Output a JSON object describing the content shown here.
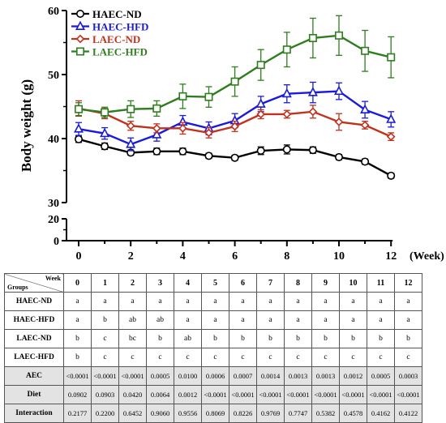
{
  "chart_data": {
    "type": "line",
    "title": "",
    "ylabel": "Body weight (g)",
    "xlabel": "(Week)",
    "x": [
      0,
      1,
      2,
      3,
      4,
      5,
      6,
      7,
      8,
      9,
      10,
      11,
      12
    ],
    "xticks": [
      "0",
      "2",
      "4",
      "6",
      "8",
      "10",
      "12"
    ],
    "ylim_upper": [
      30,
      60
    ],
    "ylim_lower": [
      0,
      20
    ],
    "yticks_upper": [
      "30",
      "40",
      "50",
      "60"
    ],
    "yticks_lower": [
      "0",
      "20"
    ],
    "legend_position": "top-left",
    "grid": false,
    "series": [
      {
        "name": "HAEC-ND",
        "color": "#000000",
        "marker": "circle",
        "values": [
          39.9,
          38.8,
          37.8,
          38.0,
          38.0,
          37.3,
          37.0,
          38.1,
          38.3,
          38.2,
          37.1,
          36.4,
          34.2
        ],
        "errors": [
          0.5,
          0.5,
          0.4,
          0.5,
          0.5,
          0.4,
          0.4,
          0.6,
          0.7,
          0.5,
          0.4,
          0.4,
          0.4
        ]
      },
      {
        "name": "HAEC-HFD",
        "color": "#1a1adc",
        "marker": "triangle",
        "values": [
          41.5,
          40.8,
          39.1,
          40.6,
          42.6,
          41.6,
          42.8,
          45.4,
          47.0,
          47.2,
          47.4,
          44.5,
          43.0
        ],
        "errors": [
          1.0,
          0.9,
          1.0,
          1.0,
          1.0,
          1.0,
          1.1,
          1.2,
          1.4,
          1.6,
          1.3,
          1.3,
          1.2
        ]
      },
      {
        "name": "LAEC-ND",
        "color": "#c0321e",
        "marker": "diamond",
        "values": [
          44.7,
          43.9,
          42.0,
          41.6,
          41.6,
          40.9,
          41.9,
          43.8,
          43.8,
          44.2,
          42.6,
          42.1,
          40.3
        ],
        "errors": [
          1.2,
          0.8,
          0.7,
          0.7,
          0.9,
          0.8,
          0.8,
          0.7,
          0.6,
          1.0,
          1.3,
          0.6,
          0.6
        ]
      },
      {
        "name": "LAEC-HFD",
        "color": "#2e7d1e",
        "marker": "square",
        "values": [
          44.6,
          44.1,
          44.6,
          44.7,
          46.6,
          46.5,
          48.9,
          51.5,
          53.9,
          55.7,
          56.1,
          53.7,
          52.7
        ],
        "errors": [
          1.0,
          0.8,
          1.3,
          1.2,
          1.9,
          1.6,
          2.3,
          2.4,
          2.7,
          3.1,
          3.1,
          3.2,
          3.2
        ]
      }
    ]
  },
  "table": {
    "corner_week": "Week",
    "corner_groups": "Groups",
    "weeks": [
      "0",
      "1",
      "2",
      "3",
      "4",
      "5",
      "6",
      "7",
      "8",
      "9",
      "10",
      "11",
      "12"
    ],
    "rows": [
      {
        "label": "HAEC-ND",
        "cells": [
          "a",
          "a",
          "a",
          "a",
          "a",
          "a",
          "a",
          "a",
          "a",
          "a",
          "a",
          "a",
          "a"
        ],
        "shaded": false
      },
      {
        "label": "HAEC-HFD",
        "cells": [
          "a",
          "b",
          "ab",
          "ab",
          "a",
          "a",
          "a",
          "a",
          "a",
          "a",
          "a",
          "a",
          "a"
        ],
        "shaded": false
      },
      {
        "label": "LAEC-ND",
        "cells": [
          "b",
          "c",
          "bc",
          "b",
          "ab",
          "b",
          "b",
          "b",
          "b",
          "b",
          "b",
          "b",
          "b"
        ],
        "shaded": false
      },
      {
        "label": "LAEC-HFD",
        "cells": [
          "b",
          "c",
          "c",
          "c",
          "c",
          "c",
          "c",
          "c",
          "c",
          "c",
          "c",
          "c",
          "c"
        ],
        "shaded": false
      },
      {
        "label": "AEC",
        "cells": [
          "<0.0001",
          "<0.0001",
          "<0.0001",
          "0.0005",
          "0.0100",
          "0.0006",
          "0.0007",
          "0.0014",
          "0.0013",
          "0.0013",
          "0.0012",
          "0.0005",
          "0.0003"
        ],
        "shaded": true
      },
      {
        "label": "Diet",
        "cells": [
          "0.0902",
          "0.0903",
          "0.0420",
          "0.0064",
          "0.0012",
          "<0.0001",
          "<0.0001",
          "<0.0001",
          "<0.0001",
          "<0.0001",
          "<0.0001",
          "<0.0001",
          "<0.0001"
        ],
        "shaded": true
      },
      {
        "label": "Interaction",
        "cells": [
          "0.2177",
          "0.2200",
          "0.6452",
          "0.9060",
          "0.9556",
          "0.8069",
          "0.8226",
          "0.9769",
          "0.7747",
          "0.5382",
          "0.4578",
          "0.4162",
          "0.4122"
        ],
        "shaded": true
      }
    ]
  }
}
